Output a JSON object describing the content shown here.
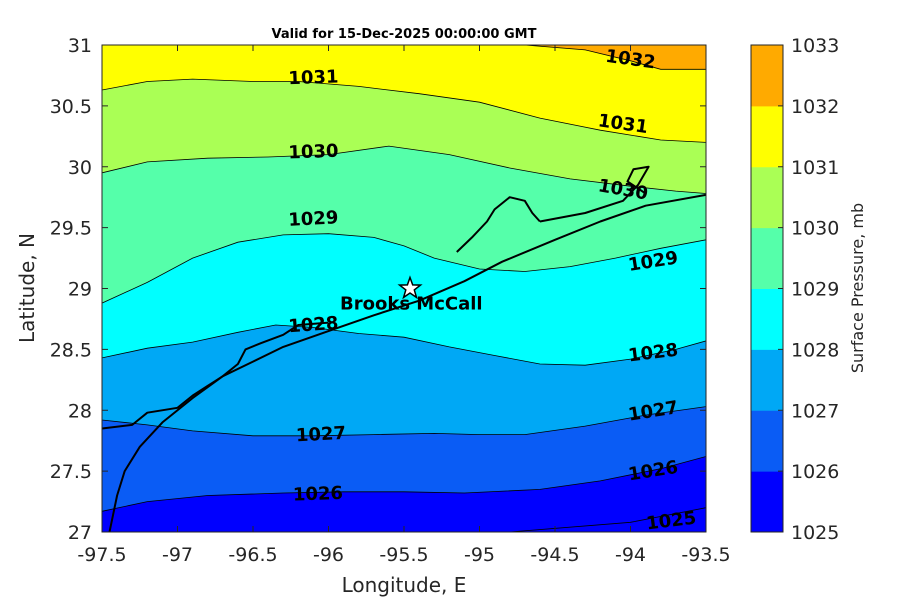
{
  "chart_data": {
    "type": "filled-contour-map",
    "title": "Valid for 15-Dec-2025 00:00:00 GMT",
    "xlabel": "Longitude, E",
    "ylabel": "Latitude, N",
    "xlim": [
      -97.5,
      -93.5
    ],
    "ylim": [
      27,
      31
    ],
    "xticks": [
      "-97.5",
      "-97",
      "-96.5",
      "-96",
      "-95.5",
      "-95",
      "-94.5",
      "-94",
      "-93.5"
    ],
    "yticks": [
      "27",
      "27.5",
      "28",
      "28.5",
      "29",
      "29.5",
      "30",
      "30.5",
      "31"
    ],
    "colorbar": {
      "label": "Surface Pressure, mb",
      "levels": [
        1025,
        1026,
        1027,
        1028,
        1029,
        1030,
        1031,
        1032,
        1033
      ],
      "tick_labels": [
        "1025",
        "1026",
        "1027",
        "1028",
        "1029",
        "1030",
        "1031",
        "1032",
        "1033"
      ],
      "colors": [
        "#0000ff",
        "#0a5cf5",
        "#00a8f5",
        "#00ffff",
        "#55ffaa",
        "#aaff55",
        "#ffff00",
        "#ffaa00",
        "#ff5500"
      ]
    },
    "contours": [
      {
        "level": 1025,
        "label": "1025",
        "points": [
          [
            -95.5,
            26.97
          ],
          [
            -94.8,
            27.0
          ],
          [
            -94.0,
            27.08
          ],
          [
            -93.5,
            27.2
          ]
        ],
        "label_at": [
          -93.73,
          27.09
        ],
        "label_angle": -7
      },
      {
        "level": 1026,
        "label": "1026",
        "points": [
          [
            -97.5,
            27.17
          ],
          [
            -97.2,
            27.25
          ],
          [
            -96.8,
            27.3
          ],
          [
            -96.3,
            27.32
          ],
          [
            -95.9,
            27.33
          ],
          [
            -95.5,
            27.33
          ],
          [
            -95.1,
            27.32
          ],
          [
            -94.6,
            27.35
          ],
          [
            -94.2,
            27.42
          ],
          [
            -93.8,
            27.52
          ],
          [
            -93.5,
            27.62
          ]
        ],
        "label_at": [
          -93.85,
          27.5
        ],
        "label_angle": -9,
        "label2_at": [
          -96.07,
          27.31
        ],
        "label2_angle": -2
      },
      {
        "level": 1027,
        "label": "1027",
        "points": [
          [
            -97.5,
            27.92
          ],
          [
            -97.2,
            27.88
          ],
          [
            -96.9,
            27.83
          ],
          [
            -96.5,
            27.79
          ],
          [
            -96.1,
            27.79
          ],
          [
            -95.7,
            27.8
          ],
          [
            -95.3,
            27.81
          ],
          [
            -95.0,
            27.8
          ],
          [
            -94.7,
            27.8
          ],
          [
            -94.3,
            27.87
          ],
          [
            -93.9,
            27.96
          ],
          [
            -93.5,
            28.03
          ]
        ],
        "label_at": [
          -93.85,
          27.99
        ],
        "label_angle": -9,
        "label2_at": [
          -96.05,
          27.8
        ],
        "label2_angle": -3
      },
      {
        "level": 1028,
        "label": "1028",
        "points": [
          [
            -97.5,
            28.43
          ],
          [
            -97.2,
            28.51
          ],
          [
            -96.9,
            28.56
          ],
          [
            -96.6,
            28.64
          ],
          [
            -96.35,
            28.7
          ],
          [
            -96.1,
            28.68
          ],
          [
            -95.8,
            28.63
          ],
          [
            -95.5,
            28.6
          ],
          [
            -95.2,
            28.52
          ],
          [
            -94.9,
            28.45
          ],
          [
            -94.6,
            28.38
          ],
          [
            -94.3,
            28.37
          ],
          [
            -94.0,
            28.42
          ],
          [
            -93.7,
            28.5
          ],
          [
            -93.5,
            28.57
          ]
        ],
        "label_at": [
          -93.85,
          28.47
        ],
        "label_angle": -7,
        "label2_at": [
          -96.1,
          28.7
        ],
        "label2_angle": -4
      },
      {
        "level": 1029,
        "label": "1029",
        "points": [
          [
            -97.5,
            28.88
          ],
          [
            -97.2,
            29.05
          ],
          [
            -96.9,
            29.25
          ],
          [
            -96.6,
            29.38
          ],
          [
            -96.3,
            29.44
          ],
          [
            -96.0,
            29.45
          ],
          [
            -95.7,
            29.42
          ],
          [
            -95.5,
            29.35
          ],
          [
            -95.3,
            29.25
          ],
          [
            -95.0,
            29.16
          ],
          [
            -94.7,
            29.14
          ],
          [
            -94.4,
            29.18
          ],
          [
            -94.1,
            29.25
          ],
          [
            -93.8,
            29.33
          ],
          [
            -93.5,
            29.4
          ]
        ],
        "label_at": [
          -93.85,
          29.22
        ],
        "label_angle": -9,
        "label2_at": [
          -96.1,
          29.57
        ],
        "label2_angle": -3
      },
      {
        "level": 1030,
        "label": "1030",
        "points": [
          [
            -97.5,
            29.95
          ],
          [
            -97.2,
            30.04
          ],
          [
            -96.8,
            30.07
          ],
          [
            -96.4,
            30.08
          ],
          [
            -96.0,
            30.1
          ],
          [
            -95.6,
            30.17
          ],
          [
            -95.2,
            30.1
          ],
          [
            -94.8,
            29.99
          ],
          [
            -94.4,
            29.9
          ],
          [
            -94.0,
            29.84
          ],
          [
            -93.7,
            29.8
          ],
          [
            -93.5,
            29.78
          ]
        ],
        "label_at": [
          -94.05,
          29.81
        ],
        "label_angle": 10,
        "label2_at": [
          -96.1,
          30.12
        ],
        "label2_angle": -2
      },
      {
        "level": 1031,
        "label": "1031",
        "points": [
          [
            -97.5,
            30.63
          ],
          [
            -97.2,
            30.7
          ],
          [
            -96.9,
            30.72
          ],
          [
            -96.5,
            30.7
          ],
          [
            -96.2,
            30.7
          ],
          [
            -95.8,
            30.66
          ],
          [
            -95.4,
            30.6
          ],
          [
            -95.0,
            30.53
          ],
          [
            -94.6,
            30.4
          ],
          [
            -94.2,
            30.3
          ],
          [
            -93.8,
            30.22
          ],
          [
            -93.5,
            30.2
          ]
        ],
        "label_at": [
          -94.05,
          30.35
        ],
        "label_angle": 8,
        "label2_at": [
          -96.1,
          30.73
        ],
        "label2_angle": -2
      },
      {
        "level": 1032,
        "label": "1032",
        "points": [
          [
            -94.7,
            31.0
          ],
          [
            -94.3,
            30.96
          ],
          [
            -94.0,
            30.87
          ],
          [
            -93.8,
            30.8
          ],
          [
            -93.5,
            30.8
          ]
        ],
        "label_at": [
          -94.0,
          30.88
        ],
        "label_angle": 8
      }
    ],
    "coastline": [
      [
        [
          -97.45,
          27.0
        ],
        [
          -97.4,
          27.3
        ],
        [
          -97.35,
          27.5
        ],
        [
          -97.25,
          27.7
        ],
        [
          -97.1,
          27.9
        ],
        [
          -96.9,
          28.1
        ],
        [
          -96.7,
          28.28
        ],
        [
          -96.5,
          28.4
        ],
        [
          -96.3,
          28.52
        ],
        [
          -96.0,
          28.65
        ],
        [
          -95.7,
          28.78
        ],
        [
          -95.4,
          28.9
        ],
        [
          -95.1,
          29.06
        ],
        [
          -94.85,
          29.22
        ],
        [
          -94.5,
          29.4
        ],
        [
          -94.2,
          29.55
        ],
        [
          -93.9,
          29.68
        ],
        [
          -93.5,
          29.77
        ]
      ],
      [
        [
          -97.5,
          27.85
        ],
        [
          -97.3,
          27.88
        ],
        [
          -97.2,
          27.98
        ],
        [
          -97.0,
          28.02
        ],
        [
          -96.9,
          28.12
        ],
        [
          -96.8,
          28.2
        ],
        [
          -96.7,
          28.28
        ],
        [
          -96.6,
          28.38
        ],
        [
          -96.55,
          28.5
        ],
        [
          -96.45,
          28.55
        ],
        [
          -96.3,
          28.62
        ],
        [
          -96.2,
          28.7
        ],
        [
          -96.0,
          28.72
        ]
      ],
      [
        [
          -95.15,
          29.3
        ],
        [
          -95.05,
          29.42
        ],
        [
          -94.95,
          29.55
        ],
        [
          -94.9,
          29.65
        ],
        [
          -94.8,
          29.75
        ],
        [
          -94.7,
          29.72
        ],
        [
          -94.65,
          29.62
        ],
        [
          -94.6,
          29.55
        ]
      ],
      [
        [
          -94.6,
          29.55
        ],
        [
          -94.3,
          29.62
        ],
        [
          -94.05,
          29.72
        ],
        [
          -93.95,
          29.85
        ],
        [
          -93.88,
          30.0
        ],
        [
          -93.98,
          29.98
        ],
        [
          -94.02,
          29.88
        ],
        [
          -93.9,
          29.78
        ]
      ]
    ],
    "station": {
      "name": "Brooks McCall",
      "lon": -95.46,
      "lat": 29.0,
      "marker": "star"
    }
  }
}
